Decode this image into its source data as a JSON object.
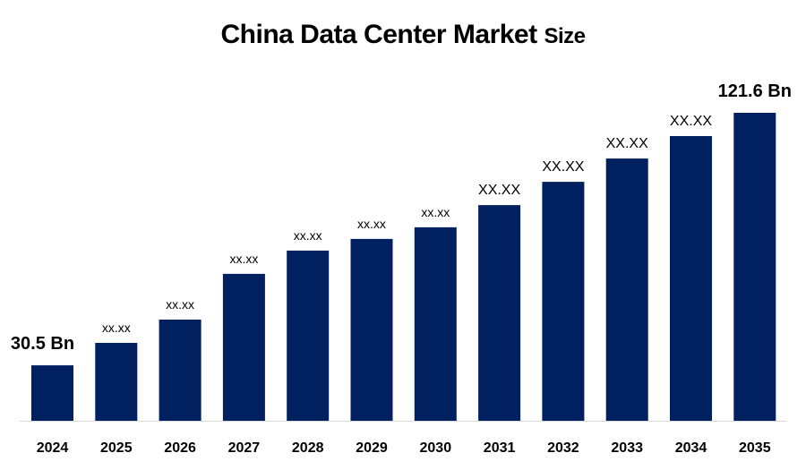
{
  "chart_data": {
    "type": "bar",
    "title": "China Data Center Market",
    "title_suffix": "Size",
    "categories": [
      "2024",
      "2025",
      "2026",
      "2027",
      "2028",
      "2029",
      "2030",
      "2031",
      "2032",
      "2033",
      "2034",
      "2035"
    ],
    "values": [
      30.5,
      38.6,
      47.0,
      63.5,
      71.9,
      76.1,
      80.3,
      88.3,
      96.7,
      105.1,
      113.2,
      121.6
    ],
    "data_labels": [
      "30.5 Bn",
      "xx.xx",
      "xx.xx",
      "xx.xx",
      "xx.xx",
      "xx.xx",
      "xx.xx",
      "XX.XX",
      "XX.XX",
      "XX.XX",
      "XX.XX",
      "121.6 Bn"
    ],
    "ylim": [
      10.5,
      125
    ],
    "xlabel": "",
    "ylabel": "",
    "grid": false,
    "legend": "none",
    "bar_color": "#002060",
    "axis_color": "#d9d9d9"
  }
}
